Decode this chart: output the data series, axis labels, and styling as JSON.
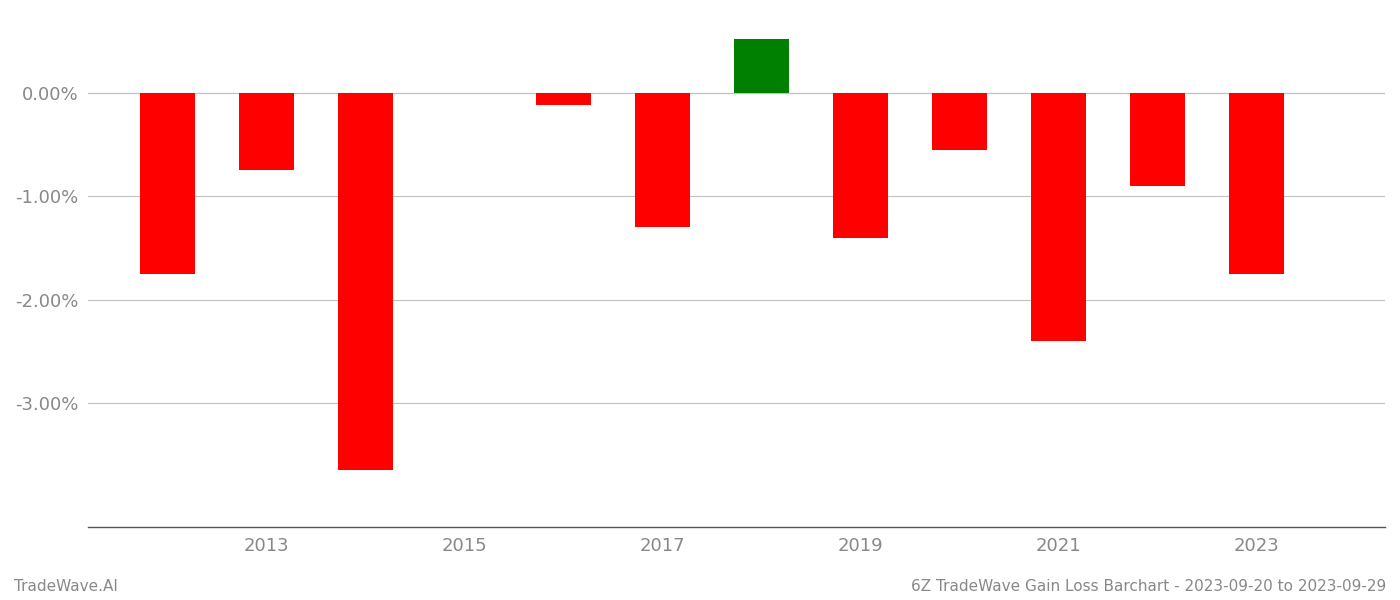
{
  "years": [
    2012,
    2013,
    2014,
    2016,
    2017,
    2018,
    2019,
    2020,
    2021,
    2022,
    2023
  ],
  "values": [
    -1.75,
    -0.75,
    -3.65,
    -0.12,
    -1.3,
    0.52,
    -1.4,
    -0.55,
    -2.4,
    -0.9,
    -1.75
  ],
  "colors": [
    "#ff0000",
    "#ff0000",
    "#ff0000",
    "#ff0000",
    "#ff0000",
    "#008000",
    "#ff0000",
    "#ff0000",
    "#ff0000",
    "#ff0000",
    "#ff0000"
  ],
  "ylim": [
    -4.2,
    0.75
  ],
  "yticks": [
    0.0,
    -1.0,
    -2.0,
    -3.0
  ],
  "footer_left": "TradeWave.AI",
  "footer_right": "6Z TradeWave Gain Loss Barchart - 2023-09-20 to 2023-09-29",
  "background_color": "#ffffff",
  "bar_width": 0.55,
  "grid_color": "#c0c0c0",
  "axis_label_color": "#888888",
  "footer_font_size": 11,
  "tick_fontsize": 13,
  "xlim_left": 2011.2,
  "xlim_right": 2024.3,
  "xticks": [
    2013,
    2015,
    2017,
    2019,
    2021,
    2023
  ]
}
